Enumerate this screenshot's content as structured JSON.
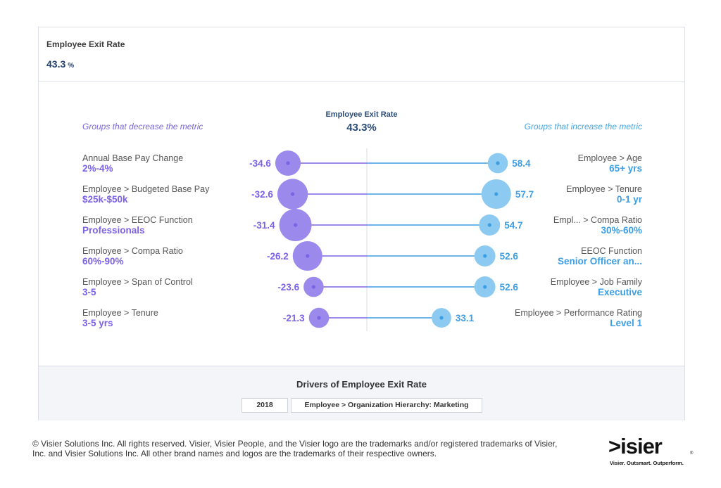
{
  "kpi": {
    "label": "Employee Exit Rate",
    "value": "43.3",
    "unit": "%"
  },
  "drivers": {
    "center_title": "Employee Exit Rate",
    "center_value": "43.3%",
    "left_heading": "Groups that decrease the metric",
    "right_heading": "Groups that increase the metric",
    "footer_title": "Drivers of Employee Exit Rate",
    "filters": {
      "year": "2018",
      "scope": "Employee > Organization Hierarchy: Marketing"
    }
  },
  "colors": {
    "decrease": "#7b62e6",
    "decrease_bubble": "#9b8aec",
    "increase": "#3d9ee3",
    "increase_bubble": "#8ccaf2",
    "divider": "#d9dde4"
  },
  "chart_data": {
    "type": "scatter",
    "title": "Drivers of Employee Exit Rate",
    "baseline": 43.3,
    "decrease": [
      {
        "attribute": "Annual Base Pay Change",
        "group": "2%-4%",
        "value": -34.6,
        "label": "-34.6",
        "weight": 0.62
      },
      {
        "attribute": "Employee > Budgeted Base Pay",
        "group": "$25k-$50k",
        "value": -32.6,
        "label": "-32.6",
        "weight": 0.9
      },
      {
        "attribute": "Employee > EEOC Function",
        "group": "Professionals",
        "value": -31.4,
        "label": "-31.4",
        "weight": 1.0
      },
      {
        "attribute": "Employee > Compa Ratio",
        "group": "60%-90%",
        "value": -26.2,
        "label": "-26.2",
        "weight": 0.85
      },
      {
        "attribute": "Employee > Span of Control",
        "group": "3-5",
        "value": -23.6,
        "label": "-23.6",
        "weight": 0.33
      },
      {
        "attribute": "Employee > Tenure",
        "group": "3-5 yrs",
        "value": -21.3,
        "label": "-21.3",
        "weight": 0.33
      }
    ],
    "increase": [
      {
        "attribute": "Employee > Age",
        "group": "65+ yrs",
        "value": 58.4,
        "label": "58.4",
        "weight": 0.33
      },
      {
        "attribute": "Employee > Tenure",
        "group": "0-1 yr",
        "value": 57.7,
        "label": "57.7",
        "weight": 0.85
      },
      {
        "attribute": "Empl... > Compa Ratio",
        "group": "30%-60%",
        "value": 54.7,
        "label": "54.7",
        "weight": 0.38
      },
      {
        "attribute": "EEOC Function",
        "group": "Senior Officer an...",
        "value": 52.6,
        "label": "52.6",
        "weight": 0.38
      },
      {
        "attribute": "Employee > Job Family",
        "group": "Executive",
        "value": 52.6,
        "label": "52.6",
        "weight": 0.38
      },
      {
        "attribute": "Employee > Performance Rating",
        "group": "Level 1",
        "value": 33.1,
        "label": "33.1",
        "weight": 0.3
      }
    ]
  },
  "footer": {
    "copyright": "© Visier Solutions Inc. All rights reserved. Visier, Visier People, and the Visier logo are the trademarks and/or registered trademarks of Visier, Inc. and Visier Solutions Inc. All other brand names and logos are the trademarks of their respective owners.",
    "logo_text": ">isier",
    "logo_reg": "®",
    "tagline": "Visier. Outsmart. Outperform."
  }
}
